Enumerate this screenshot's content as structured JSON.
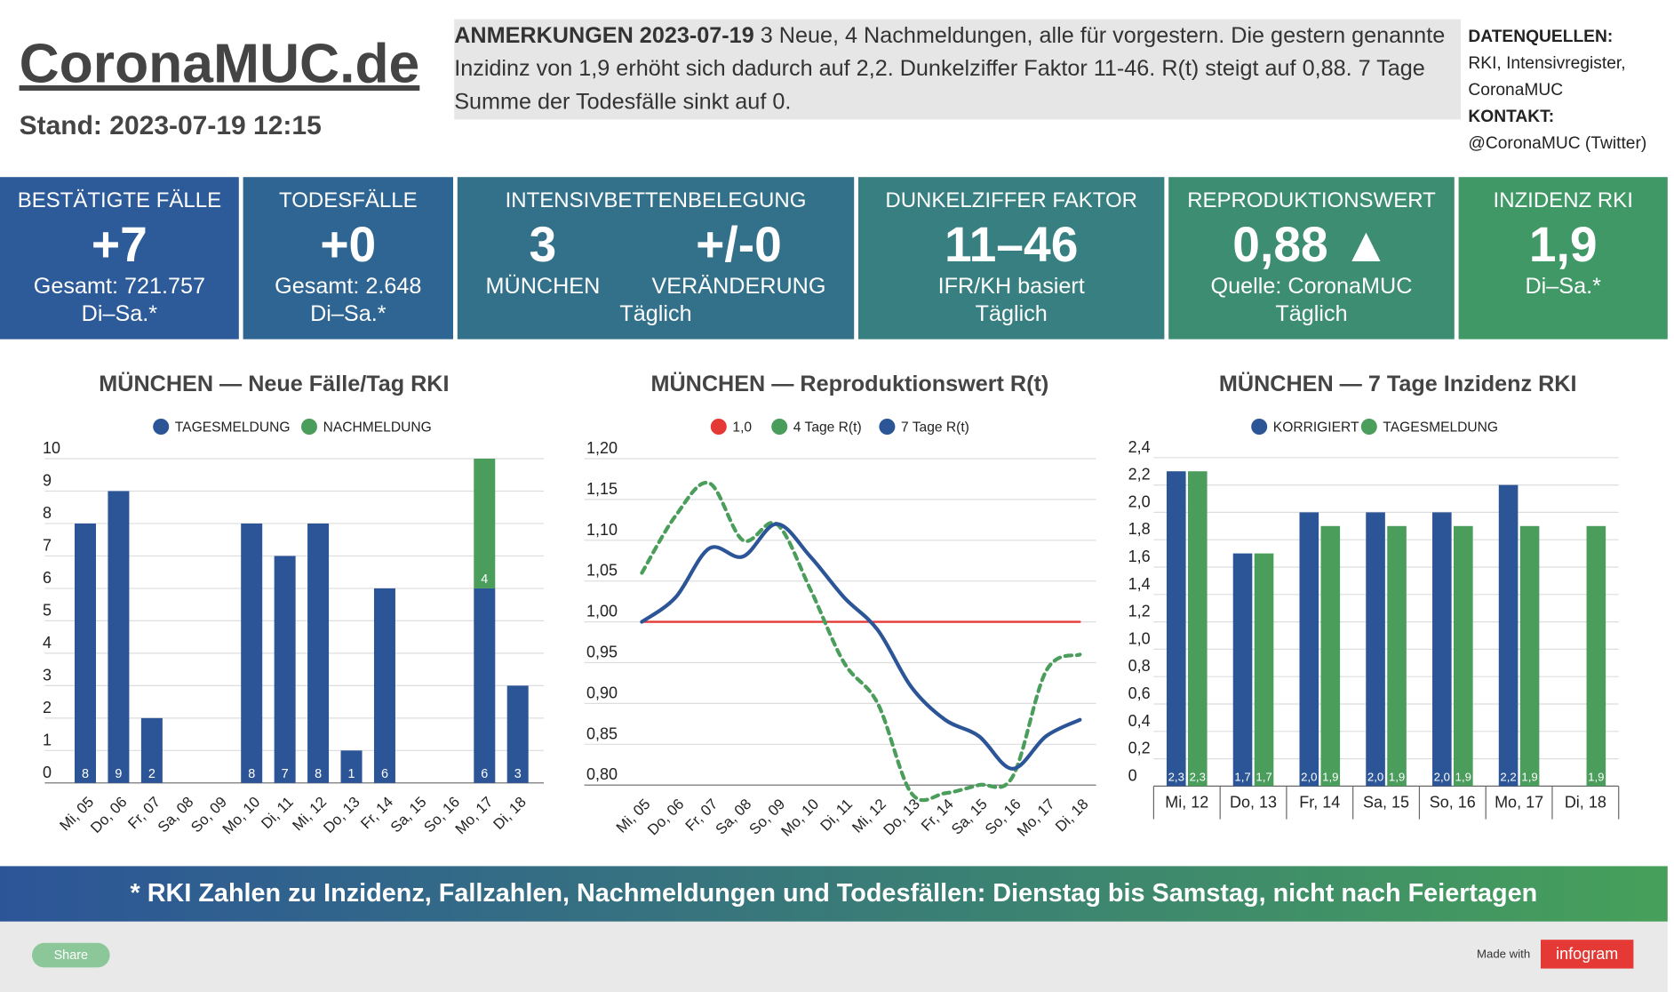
{
  "header": {
    "title": "CoronaMUC.de",
    "stand": "Stand: 2023-07-19 12:15"
  },
  "notes": {
    "heading": "ANMERKUNGEN 2023-07-19",
    "text": "3 Neue, 4 Nachmeldungen, alle für vorgestern. Die gestern genannte Inzidinz von 1,9 erhöht sich dadurch auf 2,2. Dunkelziffer Faktor 11-46. R(t) steigt auf 0,88. 7 Tage Summe der Todesfälle sinkt auf 0."
  },
  "sources": {
    "heading": "DATENQUELLEN:",
    "text": "RKI, Intensivregister, CoronaMUC",
    "contact_heading": "KONTAKT:",
    "contact": "@CoronaMUC (Twitter)"
  },
  "kpis": [
    {
      "title": "BESTÄTIGTE FÄLLE",
      "big": "+7",
      "lines": [
        "Gesamt: 721.757",
        "Di–Sa.*"
      ]
    },
    {
      "title": "TODESFÄLLE",
      "big": "+0",
      "lines": [
        "Gesamt: 2.648",
        "Di–Sa.*"
      ]
    },
    {
      "title": "INTENSIVBETTENBELEGUNG",
      "figures": [
        {
          "big": "3",
          "label": "MÜNCHEN"
        },
        {
          "big": "+/-0",
          "label": "VERÄNDERUNG"
        }
      ],
      "lines": [
        "Täglich"
      ]
    },
    {
      "title": "DUNKELZIFFER FAKTOR",
      "big": "11–46",
      "lines": [
        "IFR/KH basiert",
        "Täglich"
      ]
    },
    {
      "title": "REPRODUKTIONSWERT",
      "big": "0,88 ▲",
      "lines": [
        "Quelle: CoronaMUC",
        "Täglich"
      ]
    },
    {
      "title": "INZIDENZ RKI",
      "big": "1,9",
      "lines": [
        "Di–Sa.*"
      ]
    }
  ],
  "chart_data": [
    {
      "type": "bar",
      "stacked": true,
      "title": "MÜNCHEN — Neue Fälle/Tag RKI",
      "categories": [
        "Mi, 05",
        "Do, 06",
        "Fr, 07",
        "Sa, 08",
        "So, 09",
        "Mo, 10",
        "Di, 11",
        "Mi, 12",
        "Do, 13",
        "Fr, 14",
        "Sa, 15",
        "So, 16",
        "Mo, 17",
        "Di, 18"
      ],
      "series": [
        {
          "name": "TAGESMELDUNG",
          "color": "#2c5598",
          "values": [
            8,
            9,
            2,
            null,
            null,
            8,
            7,
            8,
            1,
            6,
            null,
            null,
            6,
            3
          ]
        },
        {
          "name": "NACHMELDUNG",
          "color": "#4a9d5b",
          "values": [
            null,
            null,
            null,
            null,
            null,
            null,
            null,
            null,
            null,
            null,
            null,
            null,
            4,
            null
          ]
        }
      ],
      "ylim": [
        0,
        10
      ],
      "yticks": [
        0,
        1,
        2,
        3,
        4,
        5,
        6,
        7,
        8,
        9,
        10
      ],
      "grid": true
    },
    {
      "type": "line",
      "title": "MÜNCHEN — Reproduktionswert R(t)",
      "categories": [
        "Mi, 05",
        "Do, 06",
        "Fr, 07",
        "Sa, 08",
        "So, 09",
        "Mo, 10",
        "Di, 11",
        "Mi, 12",
        "Do, 13",
        "Fr, 14",
        "Sa, 15",
        "So, 16",
        "Mo, 17",
        "Di, 18"
      ],
      "series": [
        {
          "name": "1,0",
          "color": "#e53935",
          "values": [
            1,
            1,
            1,
            1,
            1,
            1,
            1,
            1,
            1,
            1,
            1,
            1,
            1,
            1
          ]
        },
        {
          "name": "4 Tage R(t)",
          "color": "#4a9d5b",
          "dashed": true,
          "values": [
            1.06,
            1.13,
            1.17,
            1.1,
            1.12,
            1.04,
            0.95,
            0.9,
            0.79,
            0.79,
            0.8,
            0.81,
            0.94,
            0.96
          ]
        },
        {
          "name": "7 Tage R(t)",
          "color": "#2c5598",
          "values": [
            1.0,
            1.03,
            1.09,
            1.08,
            1.12,
            1.08,
            1.03,
            0.99,
            0.92,
            0.88,
            0.86,
            0.82,
            0.86,
            0.88
          ]
        }
      ],
      "ylim": [
        0.8,
        1.2
      ],
      "yticks": [
        {
          "value": 0.8,
          "label": "0,80"
        },
        {
          "value": 0.85,
          "label": "0,85"
        },
        {
          "value": 0.9,
          "label": "0,90"
        },
        {
          "value": 0.95,
          "label": "0,95"
        },
        {
          "value": 1.0,
          "label": "1,00"
        },
        {
          "value": 1.05,
          "label": "1,05"
        },
        {
          "value": 1.1,
          "label": "1,10"
        },
        {
          "value": 1.15,
          "label": "1,15"
        },
        {
          "value": 1.2,
          "label": "1,20"
        }
      ],
      "grid": true
    },
    {
      "type": "bar",
      "title": "MÜNCHEN — 7 Tage Inzidenz RKI",
      "categories": [
        "Mi, 12",
        "Do, 13",
        "Fr, 14",
        "Sa, 15",
        "So, 16",
        "Mo, 17",
        "Di, 18"
      ],
      "series": [
        {
          "name": "KORRIGIERT",
          "color": "#2c5598",
          "values": [
            2.3,
            1.7,
            2.0,
            2.0,
            2.0,
            2.2,
            null
          ],
          "value_labels": [
            "2,3",
            "1,7",
            "2,0",
            "2,0",
            "2,0",
            "2,2",
            null
          ]
        },
        {
          "name": "TAGESMELDUNG",
          "color": "#4a9d5b",
          "values": [
            2.3,
            1.7,
            1.9,
            1.9,
            1.9,
            1.9,
            1.9
          ],
          "value_labels": [
            "2,3",
            "1,7",
            "1,9",
            "1,9",
            "1,9",
            "1,9",
            "1,9"
          ]
        }
      ],
      "ylim": [
        0,
        2.4
      ],
      "yticks": [
        0,
        {
          "value": 0.2,
          "label": "0,2"
        },
        {
          "value": 0.4,
          "label": "0,4"
        },
        {
          "value": 0.6,
          "label": "0,6"
        },
        {
          "value": 0.8,
          "label": "0,8"
        },
        {
          "value": 1.0,
          "label": "1,0"
        },
        {
          "value": 1.2,
          "label": "1,2"
        },
        {
          "value": 1.4,
          "label": "1,4"
        },
        {
          "value": 1.6,
          "label": "1,6"
        },
        {
          "value": 1.8,
          "label": "1,8"
        },
        {
          "value": 2.0,
          "label": "2,0"
        },
        {
          "value": 2.2,
          "label": "2,2"
        },
        {
          "value": 2.4,
          "label": "2,4"
        }
      ],
      "grid": true
    }
  ],
  "footer": "* RKI Zahlen zu Inzidenz, Fallzahlen, Nachmeldungen und Todesfällen: Dienstag bis Samstag, nicht nach Feiertagen",
  "share": "Share",
  "made_with": "Made with",
  "brand": "infogram"
}
